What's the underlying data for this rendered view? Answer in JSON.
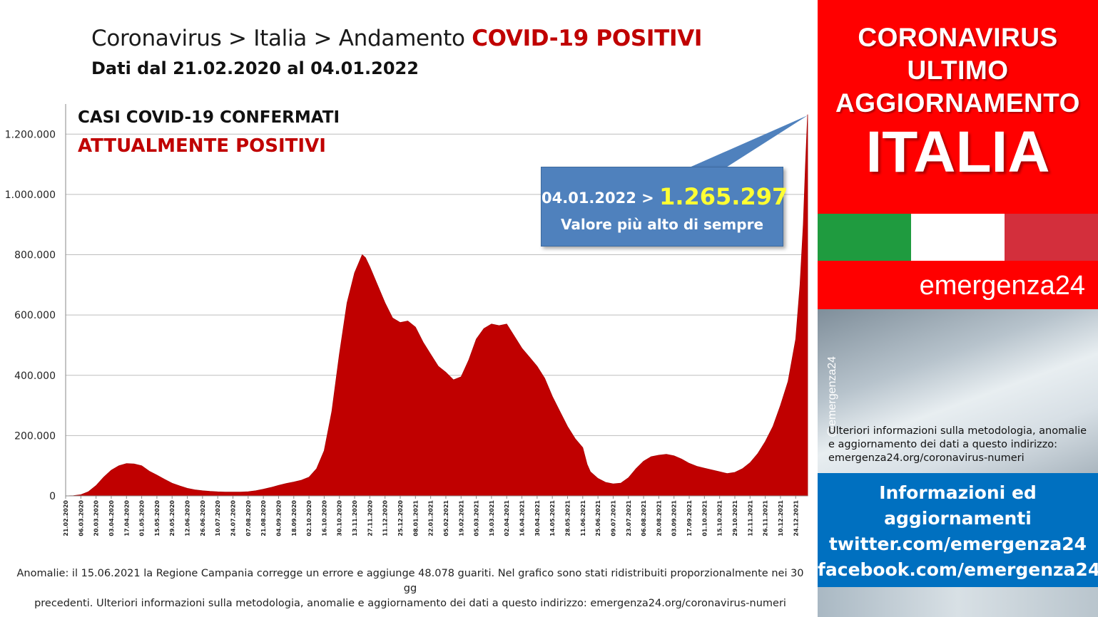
{
  "header": {
    "title_prefix": "Coronavirus > Italia > Andamento ",
    "title_highlight": "COVID-19 POSITIVI",
    "subtitle": "Dati dal 21.02.2020 al 04.01.2022"
  },
  "chart_data": {
    "type": "area",
    "title": "CASI COVID-19 CONFERMATI",
    "subtitle": "ATTUALMENTE POSITIVI",
    "series_color": "#c00000",
    "ylim": [
      0,
      1300000
    ],
    "y_ticks": [
      "0",
      "200.000",
      "400.000",
      "600.000",
      "800.000",
      "1.000.000",
      "1.200.000"
    ],
    "y_tick_values": [
      0,
      200000,
      400000,
      600000,
      800000,
      1000000,
      1200000
    ],
    "x_tick_labels": [
      "21.02.2020",
      "06.03.2020",
      "20.03.2020",
      "03.04.2020",
      "17.04.2020",
      "01.05.2020",
      "15.05.2020",
      "29.05.2020",
      "12.06.2020",
      "26.06.2020",
      "10.07.2020",
      "24.07.2020",
      "07.08.2020",
      "21.08.2020",
      "04.09.2020",
      "18.09.2020",
      "02.10.2020",
      "16.10.2020",
      "30.10.2020",
      "13.11.2020",
      "27.11.2020",
      "11.12.2020",
      "25.12.2020",
      "08.01.2021",
      "22.01.2021",
      "05.02.2021",
      "19.02.2021",
      "05.03.2021",
      "19.03.2021",
      "02.04.2021",
      "16.04.2021",
      "30.04.2021",
      "14.05.2021",
      "28.05.2021",
      "11.06.2021",
      "25.06.2021",
      "09.07.2021",
      "23.07.2021",
      "06.08.2021",
      "20.08.2021",
      "03.09.2021",
      "17.09.2021",
      "01.10.2021",
      "15.10.2021",
      "29.10.2021",
      "12.11.2021",
      "26.11.2021",
      "10.12.2021",
      "24.12.2021"
    ],
    "x": [
      "21.02.2020",
      "28.02.2020",
      "06.03.2020",
      "13.03.2020",
      "20.03.2020",
      "27.03.2020",
      "03.04.2020",
      "10.04.2020",
      "17.04.2020",
      "24.04.2020",
      "01.05.2020",
      "08.05.2020",
      "15.05.2020",
      "22.05.2020",
      "29.05.2020",
      "05.06.2020",
      "12.06.2020",
      "19.06.2020",
      "26.06.2020",
      "03.07.2020",
      "10.07.2020",
      "17.07.2020",
      "24.07.2020",
      "31.07.2020",
      "07.08.2020",
      "14.08.2020",
      "21.08.2020",
      "28.08.2020",
      "04.09.2020",
      "11.09.2020",
      "18.09.2020",
      "25.09.2020",
      "02.10.2020",
      "09.10.2020",
      "16.10.2020",
      "23.10.2020",
      "30.10.2020",
      "06.11.2020",
      "13.11.2020",
      "20.11.2020",
      "23.11.2020",
      "27.11.2020",
      "04.12.2020",
      "11.12.2020",
      "18.12.2020",
      "25.12.2020",
      "01.01.2021",
      "08.01.2021",
      "15.01.2021",
      "22.01.2021",
      "29.01.2021",
      "05.02.2021",
      "12.02.2021",
      "19.02.2021",
      "26.02.2021",
      "05.03.2021",
      "12.03.2021",
      "19.03.2021",
      "26.03.2021",
      "02.04.2021",
      "09.04.2021",
      "16.04.2021",
      "23.04.2021",
      "30.04.2021",
      "07.05.2021",
      "14.05.2021",
      "21.05.2021",
      "28.05.2021",
      "04.06.2021",
      "11.06.2021",
      "15.06.2021",
      "18.06.2021",
      "25.06.2021",
      "02.07.2021",
      "09.07.2021",
      "16.07.2021",
      "23.07.2021",
      "30.07.2021",
      "06.08.2021",
      "13.08.2021",
      "20.08.2021",
      "27.08.2021",
      "03.09.2021",
      "10.09.2021",
      "17.09.2021",
      "24.09.2021",
      "01.10.2021",
      "08.10.2021",
      "15.10.2021",
      "22.10.2021",
      "29.10.2021",
      "05.11.2021",
      "12.11.2021",
      "19.11.2021",
      "26.11.2021",
      "03.12.2021",
      "10.12.2021",
      "17.12.2021",
      "24.12.2021",
      "28.12.2021",
      "31.12.2021",
      "02.01.2022",
      "04.01.2022"
    ],
    "values": [
      0,
      1000,
      3900,
      14000,
      34000,
      62000,
      85000,
      100000,
      107000,
      106000,
      100000,
      82000,
      69000,
      55000,
      42000,
      33000,
      25000,
      20000,
      17000,
      15000,
      13500,
      12800,
      12500,
      12800,
      14000,
      17000,
      22000,
      28000,
      35000,
      41000,
      46000,
      52000,
      62000,
      90000,
      150000,
      280000,
      470000,
      640000,
      740000,
      800000,
      790000,
      760000,
      700000,
      640000,
      590000,
      575000,
      580000,
      560000,
      510000,
      470000,
      430000,
      410000,
      385000,
      395000,
      450000,
      520000,
      555000,
      570000,
      565000,
      570000,
      530000,
      490000,
      460000,
      430000,
      390000,
      330000,
      280000,
      230000,
      190000,
      160000,
      105000,
      80000,
      58000,
      45000,
      40000,
      42000,
      60000,
      90000,
      115000,
      130000,
      135000,
      138000,
      133000,
      122000,
      108000,
      98000,
      92000,
      86000,
      80000,
      74000,
      78000,
      90000,
      110000,
      140000,
      180000,
      230000,
      300000,
      380000,
      520000,
      700000,
      900000,
      1100000,
      1265297
    ]
  },
  "callout": {
    "date": "04.01.2022 > ",
    "value": "1.265.297",
    "text": "Valore più alto di sempre",
    "color": "#4f81bd",
    "value_color": "#ffff33"
  },
  "footnote": {
    "line1": "Anomalie: il 15.06.2021 la Regione Campania corregge un errore e aggiunge 48.078 guariti. Nel grafico sono stati ridistribuiti proporzionalmente nei 30 gg",
    "line2": "precedenti.  Ulteriori informazioni sulla metodologia, anomalie e aggiornamento dei dati a questo indirizzo: emergenza24.org/coronavirus-numeri"
  },
  "sidebar": {
    "line1": "CORONAVIRUS",
    "line2": "ULTIMO",
    "line3": "AGGIORNAMENTO",
    "country": "ITALIA",
    "brand": "emergenza24",
    "handle": "@emergenza24",
    "method_text": "Ulteriori informazioni sulla metodologia, anomalie e aggiornamento dei dati a questo indirizzo: emergenza24.org/coronavirus-numeri",
    "info": {
      "line1": "Informazioni ed",
      "line2": "aggiornamenti",
      "line3": "twitter.com/emergenza24",
      "line4": "facebook.com/emergenza24"
    },
    "colors": {
      "red": "#ff0000",
      "blue": "#0070c0",
      "flag_green": "#1f9b3f",
      "flag_white": "#ffffff",
      "flag_red": "#d32f3c"
    }
  }
}
